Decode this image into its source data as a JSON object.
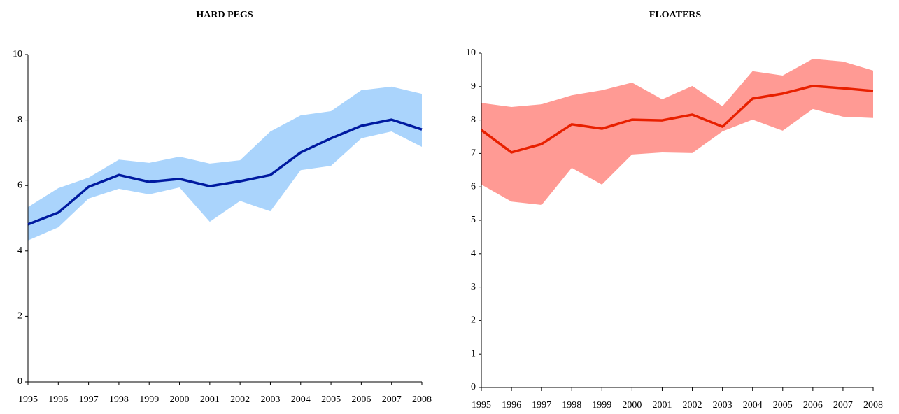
{
  "chart_data": [
    {
      "type": "line",
      "title": "HARD PEGS",
      "x": [
        1995,
        1996,
        1997,
        1998,
        1999,
        2000,
        2001,
        2002,
        2003,
        2004,
        2005,
        2006,
        2007,
        2008
      ],
      "xlim": [
        1995,
        2008
      ],
      "series": [
        {
          "color": "#001aa0",
          "values": [
            4.81,
            5.17,
            5.96,
            6.32,
            6.11,
            6.2,
            5.98,
            6.13,
            6.32,
            7.01,
            7.44,
            7.82,
            8.01,
            7.71
          ]
        }
      ],
      "band": {
        "color": "#aad4fc",
        "upper": [
          5.34,
          5.92,
          6.24,
          6.79,
          6.69,
          6.88,
          6.67,
          6.77,
          7.65,
          8.14,
          8.27,
          8.91,
          9.02,
          8.8
        ],
        "lower": [
          4.32,
          4.72,
          5.6,
          5.9,
          5.73,
          5.94,
          4.89,
          5.53,
          5.21,
          6.47,
          6.6,
          7.44,
          7.65,
          7.18
        ]
      },
      "ylim": [
        0,
        10
      ],
      "yticks": [
        0,
        2,
        4,
        6,
        8,
        10
      ]
    },
    {
      "type": "line",
      "title": "FLOATERS",
      "x": [
        1995,
        1996,
        1997,
        1998,
        1999,
        2000,
        2001,
        2002,
        2003,
        2004,
        2005,
        2006,
        2007,
        2008
      ],
      "xlim": [
        1995,
        2008
      ],
      "series": [
        {
          "color": "#e82000",
          "values": [
            7.7,
            7.03,
            7.28,
            7.87,
            7.74,
            8.01,
            7.99,
            8.16,
            7.8,
            8.64,
            8.79,
            9.02,
            8.95,
            8.87
          ]
        }
      ],
      "band": {
        "color": "#ff9a94",
        "upper": [
          8.51,
          8.39,
          8.47,
          8.74,
          8.89,
          9.12,
          8.62,
          9.02,
          8.41,
          9.46,
          9.33,
          9.83,
          9.75,
          9.48
        ],
        "lower": [
          6.07,
          5.56,
          5.46,
          6.57,
          6.07,
          6.97,
          7.03,
          7.01,
          7.66,
          8.01,
          7.68,
          8.33,
          8.1,
          8.06
        ]
      },
      "ylim": [
        0,
        10
      ],
      "yticks": [
        0,
        1,
        2,
        3,
        4,
        5,
        6,
        7,
        8,
        9,
        10
      ]
    }
  ]
}
